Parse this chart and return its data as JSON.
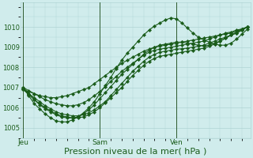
{
  "bg_color": "#d0ecec",
  "grid_color": "#b0d4d4",
  "line_color": "#1a5c1a",
  "xlabel": "Pression niveau de la mer( hPa )",
  "xlabel_fontsize": 8,
  "ylim": [
    1004.6,
    1011.2
  ],
  "yticks": [
    1005,
    1006,
    1007,
    1008,
    1009,
    1010
  ],
  "xtick_labels": [
    "Jeu",
    "Sam",
    "Ven"
  ],
  "xtick_positions": [
    0,
    14,
    28
  ],
  "vline_positions": [
    0,
    14,
    28
  ],
  "total_points": 42,
  "series": [
    [
      1006.9,
      1006.8,
      1006.7,
      1006.6,
      1006.55,
      1006.5,
      1006.5,
      1006.55,
      1006.6,
      1006.7,
      1006.8,
      1006.9,
      1007.0,
      1007.2,
      1007.4,
      1007.6,
      1007.8,
      1008.0,
      1008.2,
      1008.35,
      1008.5,
      1008.65,
      1008.8,
      1008.9,
      1009.0,
      1009.05,
      1009.1,
      1009.15,
      1009.2,
      1009.25,
      1009.3,
      1009.35,
      1009.4,
      1009.45,
      1009.5,
      1009.55,
      1009.6,
      1009.65,
      1009.7,
      1009.8,
      1009.9,
      1010.0
    ],
    [
      1006.9,
      1006.7,
      1006.5,
      1006.3,
      1006.1,
      1005.95,
      1005.8,
      1005.7,
      1005.65,
      1005.6,
      1005.6,
      1005.65,
      1005.75,
      1005.9,
      1006.1,
      1006.3,
      1006.6,
      1006.9,
      1007.2,
      1007.5,
      1007.8,
      1008.05,
      1008.3,
      1008.5,
      1008.65,
      1008.75,
      1008.8,
      1008.85,
      1008.9,
      1008.92,
      1008.95,
      1009.0,
      1009.05,
      1009.1,
      1009.2,
      1009.3,
      1009.4,
      1009.5,
      1009.6,
      1009.7,
      1009.85,
      1010.0
    ],
    [
      1006.9,
      1006.65,
      1006.4,
      1006.2,
      1006.0,
      1005.85,
      1005.7,
      1005.6,
      1005.55,
      1005.5,
      1005.5,
      1005.55,
      1005.65,
      1005.8,
      1006.0,
      1006.25,
      1006.5,
      1006.75,
      1007.0,
      1007.3,
      1007.6,
      1007.85,
      1008.1,
      1008.3,
      1008.45,
      1008.55,
      1008.6,
      1008.65,
      1008.7,
      1008.75,
      1008.8,
      1008.85,
      1008.9,
      1008.95,
      1009.05,
      1009.15,
      1009.3,
      1009.45,
      1009.6,
      1009.7,
      1009.85,
      1010.0
    ],
    [
      1007.0,
      1006.85,
      1006.7,
      1006.55,
      1006.4,
      1006.3,
      1006.2,
      1006.15,
      1006.1,
      1006.1,
      1006.15,
      1006.25,
      1006.4,
      1006.6,
      1006.8,
      1007.05,
      1007.3,
      1007.55,
      1007.8,
      1008.0,
      1008.2,
      1008.4,
      1008.6,
      1008.75,
      1008.85,
      1008.9,
      1008.95,
      1009.0,
      1009.05,
      1009.1,
      1009.15,
      1009.2,
      1009.25,
      1009.3,
      1009.4,
      1009.5,
      1009.6,
      1009.7,
      1009.75,
      1009.85,
      1009.9,
      1010.0
    ],
    [
      1007.0,
      1006.6,
      1006.2,
      1005.95,
      1005.7,
      1005.5,
      1005.35,
      1005.3,
      1005.3,
      1005.4,
      1005.55,
      1005.75,
      1006.0,
      1006.3,
      1006.7,
      1007.1,
      1007.5,
      1007.95,
      1008.35,
      1008.7,
      1009.0,
      1009.3,
      1009.6,
      1009.85,
      1010.05,
      1010.2,
      1010.35,
      1010.45,
      1010.4,
      1010.2,
      1009.95,
      1009.7,
      1009.5,
      1009.35,
      1009.25,
      1009.15,
      1009.1,
      1009.1,
      1009.2,
      1009.4,
      1009.65,
      1009.9
    ],
    [
      1007.0,
      1006.7,
      1006.4,
      1006.15,
      1005.95,
      1005.8,
      1005.65,
      1005.55,
      1005.5,
      1005.5,
      1005.55,
      1005.7,
      1005.9,
      1006.15,
      1006.45,
      1006.75,
      1007.05,
      1007.35,
      1007.65,
      1007.9,
      1008.15,
      1008.4,
      1008.65,
      1008.85,
      1009.0,
      1009.1,
      1009.15,
      1009.2,
      1009.25,
      1009.25,
      1009.2,
      1009.15,
      1009.1,
      1009.05,
      1009.1,
      1009.2,
      1009.3,
      1009.45,
      1009.6,
      1009.75,
      1009.9,
      1010.0
    ]
  ],
  "marker_size": 2.2,
  "linewidth": 0.8
}
